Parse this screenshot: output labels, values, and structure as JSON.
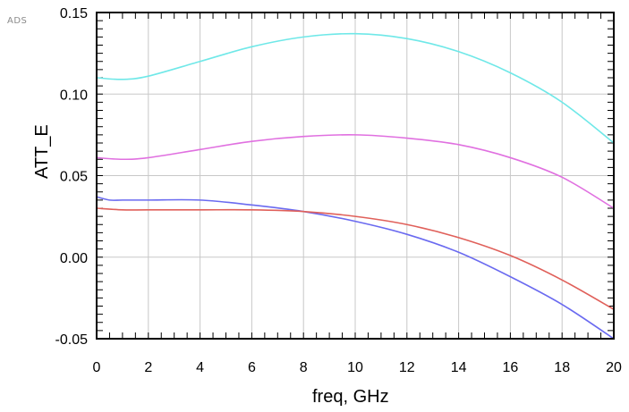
{
  "chart_data": {
    "type": "line",
    "logo": "ADS",
    "xlabel": "freq, GHz",
    "ylabel": "ATT_E",
    "xlim": [
      0,
      20
    ],
    "ylim": [
      -0.05,
      0.15
    ],
    "x_ticks": [
      "0",
      "2",
      "4",
      "6",
      "8",
      "10",
      "12",
      "14",
      "16",
      "18",
      "20"
    ],
    "y_ticks": [
      "0.15",
      "0.10",
      "0.05",
      "0.00",
      "-0.05"
    ],
    "grid": true,
    "colors": {
      "cyan": "#6fe8e8",
      "magenta": "#e070e0",
      "blue": "#6a6af0",
      "red": "#e0605a",
      "axis": "#000000",
      "grid": "#c8c8c8"
    },
    "series": [
      {
        "color_key": "cyan",
        "x": [
          0,
          1,
          2,
          4,
          6,
          8,
          10,
          12,
          14,
          16,
          18,
          20
        ],
        "y": [
          0.11,
          0.109,
          0.111,
          0.12,
          0.129,
          0.135,
          0.137,
          0.134,
          0.126,
          0.113,
          0.095,
          0.07
        ]
      },
      {
        "color_key": "magenta",
        "x": [
          0,
          1,
          2,
          4,
          6,
          8,
          10,
          12,
          14,
          16,
          18,
          20
        ],
        "y": [
          0.061,
          0.06,
          0.061,
          0.066,
          0.071,
          0.074,
          0.075,
          0.073,
          0.069,
          0.061,
          0.049,
          0.03
        ]
      },
      {
        "color_key": "blue",
        "x": [
          0,
          0.5,
          1,
          2,
          4,
          6,
          8,
          10,
          12,
          14,
          16,
          18,
          20
        ],
        "y": [
          0.037,
          0.035,
          0.035,
          0.035,
          0.035,
          0.032,
          0.028,
          0.022,
          0.014,
          0.003,
          -0.012,
          -0.029,
          -0.05
        ]
      },
      {
        "color_key": "red",
        "x": [
          0,
          1,
          2,
          4,
          6,
          8,
          10,
          12,
          14,
          16,
          18,
          20
        ],
        "y": [
          0.03,
          0.029,
          0.029,
          0.029,
          0.029,
          0.028,
          0.025,
          0.02,
          0.012,
          0.001,
          -0.014,
          -0.032
        ]
      }
    ]
  }
}
